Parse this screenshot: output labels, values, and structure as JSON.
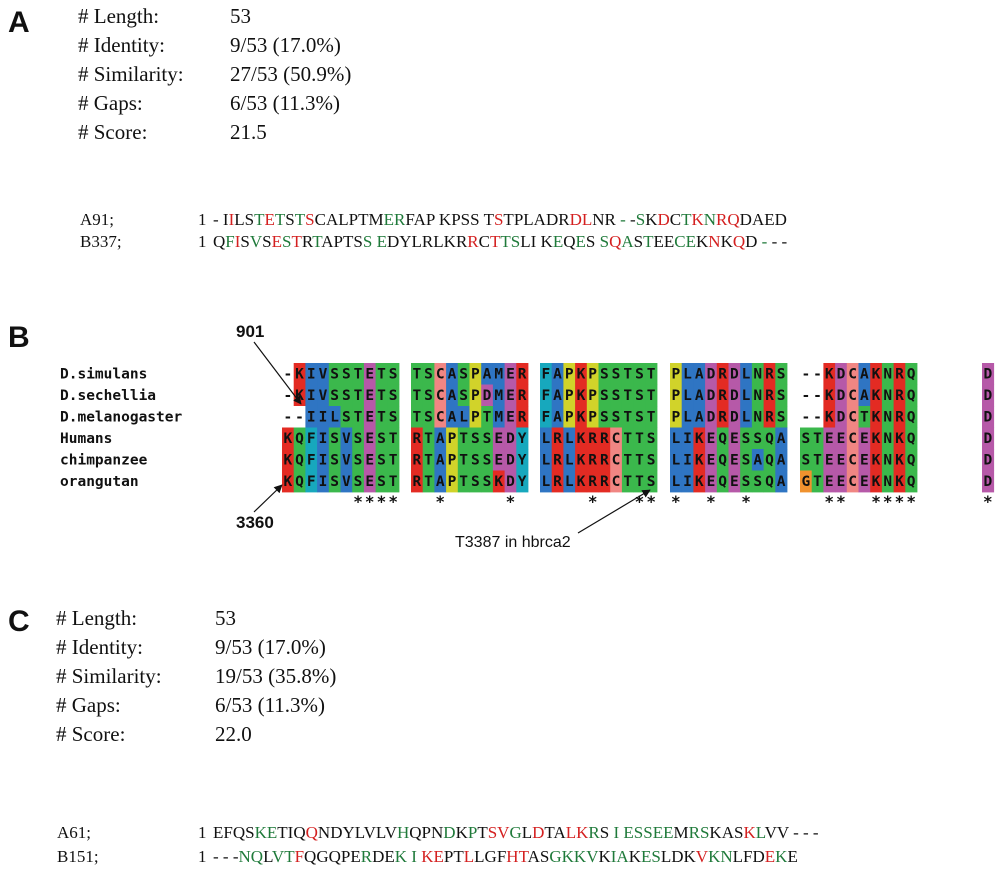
{
  "panels": {
    "A": {
      "label": "A",
      "stats": [
        {
          "key": "# Length:",
          "value": "53"
        },
        {
          "key": "# Identity:",
          "value": "9/53 (17.0%)"
        },
        {
          "key": "# Similarity:",
          "value": "27/53 (50.9%)"
        },
        {
          "key": "# Gaps:",
          "value": "6/53 (11.3%)"
        },
        {
          "key": "# Score:",
          "value": "21.5"
        }
      ],
      "rows": [
        {
          "name": "A91;",
          "start": "1",
          "seq": "- IILSTETSTSCALPTMERFAP KPSS TSTPLADRDLNR - -SKDCTKNRQDAED",
          "red": [
            3,
            7,
            11,
            30,
            37,
            38,
            47,
            50,
            52,
            53
          ],
          "green": [
            6,
            8,
            10,
            18,
            19,
            41,
            42,
            43,
            45,
            49,
            51
          ]
        },
        {
          "name": "B337;",
          "start": "1",
          "seq": "QFISVSESTRTAPTSS EDYLRLKRRCTTSLI KEQES SQASTEECEKNKQD - - -",
          "red": [
            2,
            6,
            8,
            25,
            27,
            40,
            49,
            51
          ],
          "green": [
            1,
            4,
            7,
            10,
            15,
            17,
            28,
            29,
            34,
            36,
            38,
            39,
            41,
            43,
            46,
            47,
            53,
            54
          ]
        }
      ]
    },
    "B": {
      "label": "B",
      "species": [
        "D.simulans",
        "D.sechellia",
        "D.melanogaster",
        "Humans",
        "chimpanzee",
        "orangutan"
      ],
      "blocks": [
        [
          "-KIVSSTETS",
          "-KIVSSTETS",
          "--IILSTETS",
          "KQFISVSEST",
          "KQFISVSEST",
          "KQFISVSEST"
        ],
        [
          "TSCASPAMER",
          "TSCASPDMER",
          "TSCALPTMER",
          "RTAPTSSEDY",
          "RTAPTSSEDY",
          "RTAPTSSKDY"
        ],
        [
          "FAPKPSSTST",
          "FAPKPSSTST",
          "FAPKPSSTST",
          "LRLKRRCTTS",
          "LRLKRRCTTS",
          "LRLKRRCTTS"
        ],
        [
          "PLADRDLNRS",
          "PLADRDLNRS",
          "PLADRDLNRS",
          "LIKEQESSQA",
          "LIKEQESAQA",
          "LIKEQESSQA"
        ],
        [
          "--KDCAKNRQ",
          "--KDCAKNRQ",
          "--KDCTKNRQ",
          "STEECEKNKQ",
          "STEECEKNKQ",
          "GTEECEKNKQ"
        ],
        [
          "D",
          "D",
          "D",
          "D",
          "D",
          "D"
        ]
      ],
      "consensus": [
        "      ****",
        "  *     * ",
        "    *   **",
        "*  *  *   ",
        "  **  ****",
        "*"
      ],
      "annotations": {
        "left_top": "901",
        "left_bottom": "3360",
        "right_bottom": "T3387 in hbrca2"
      },
      "colors": {
        "hydrophobic": "#2f75c3",
        "positive": "#e32b23",
        "negative": "#b659a8",
        "polar": "#3bb84c",
        "cysteine": "#f08683",
        "glycine": "#f0922e",
        "proline": "#d1d32a",
        "aromatic": "#17a8bd",
        "gap": "#ffffff"
      }
    },
    "C": {
      "label": "C",
      "stats": [
        {
          "key": "# Length:",
          "value": "53"
        },
        {
          "key": "# Identity:",
          "value": "9/53 (17.0%)"
        },
        {
          "key": "# Similarity:",
          "value": "19/53 (35.8%)"
        },
        {
          "key": "# Gaps:",
          "value": "6/53 (11.3%)"
        },
        {
          "key": "# Score:",
          "value": "22.0"
        }
      ],
      "rows": [
        {
          "name": "A61;",
          "start": "1",
          "seq": "EFQSKETIQQNDYLVLVHQPNDKPTSVGLDTALKRS I ESSEEMRSKASKLVV - - -",
          "red": [
            9,
            25,
            26,
            29,
            32,
            33,
            50,
            54
          ],
          "green": [
            4,
            5,
            17,
            21,
            23,
            27,
            34,
            37,
            39,
            40,
            41,
            42,
            43,
            45,
            46,
            51
          ],
          "note": ""
        },
        {
          "name": "B151;",
          "start": "1",
          "seq": "- - -NQLVTFQGQPERDEK I KEPTLLGFHTASGKKVKIAKESLDKVKNLFDEKE",
          "red": [
            10,
            23,
            24,
            27,
            31,
            32,
            48,
            54
          ],
          "green": [
            5,
            6,
            8,
            9,
            16,
            19,
            21,
            35,
            36,
            37,
            38,
            40,
            41,
            43,
            44,
            49,
            50,
            55
          ]
        }
      ]
    }
  }
}
